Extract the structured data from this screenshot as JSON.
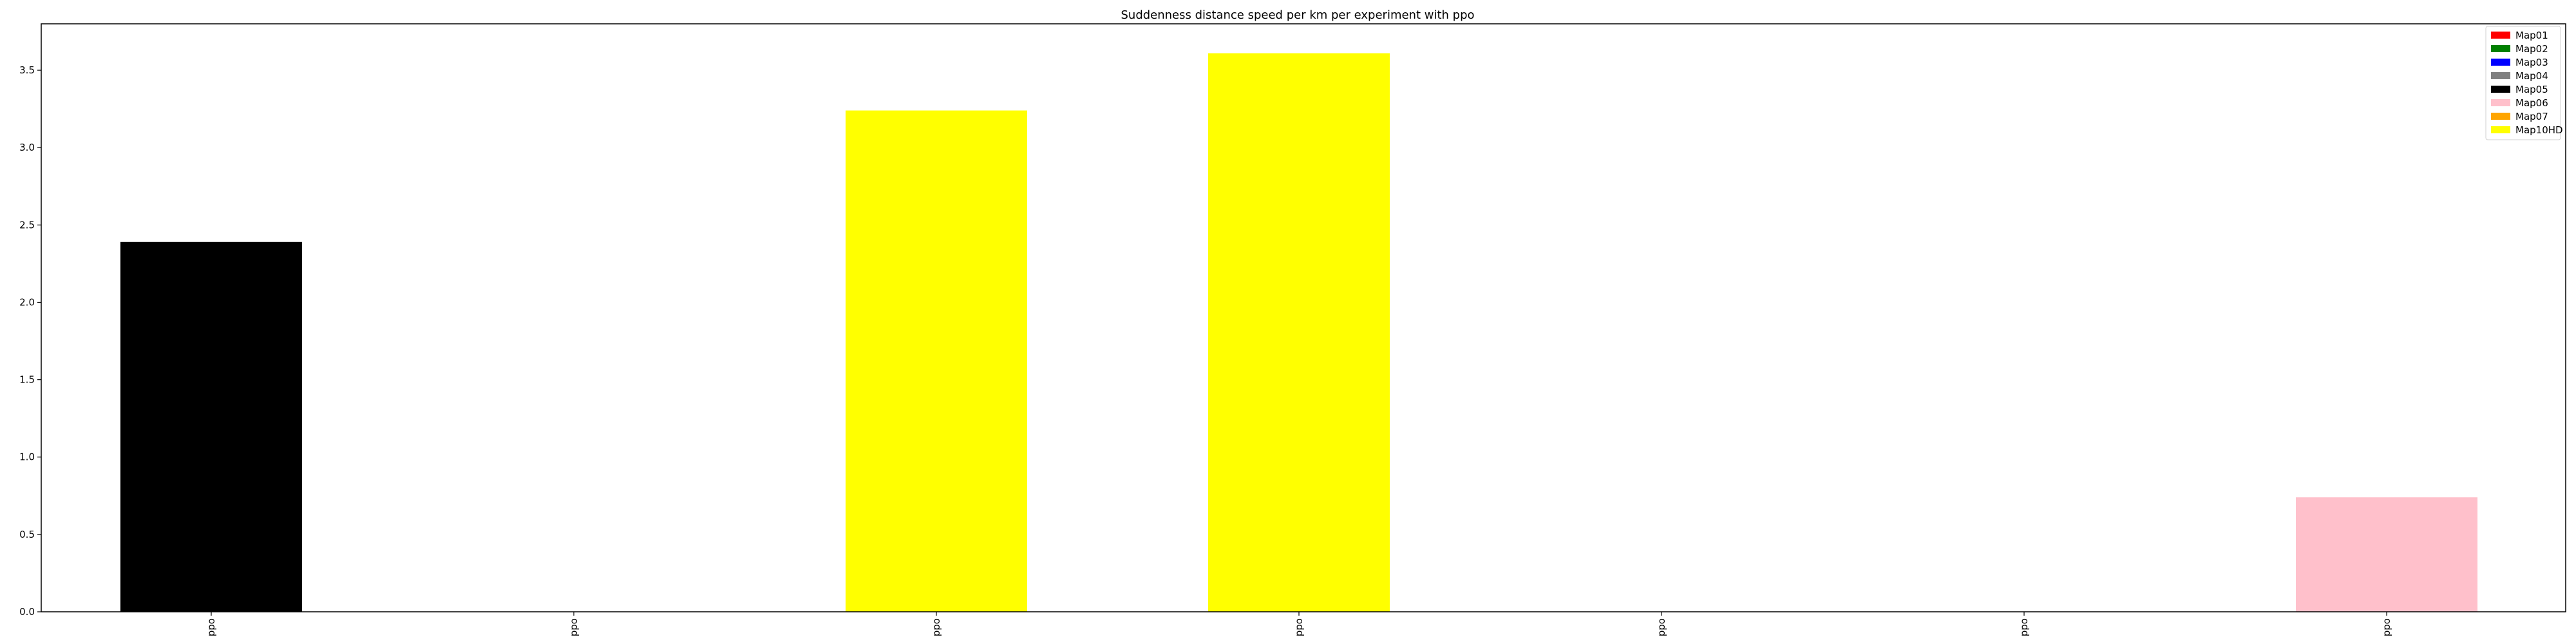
{
  "chart_data": {
    "type": "bar",
    "title": "Suddenness distance speed per km per experiment with ppo",
    "xlabel": "",
    "ylabel": "",
    "categories": [
      "ppo",
      "ppo",
      "ppo",
      "ppo",
      "ppo",
      "ppo",
      "ppo"
    ],
    "values": [
      2.39,
      0,
      3.24,
      3.61,
      0,
      0,
      0.74
    ],
    "bar_colors": [
      "#000000",
      "#000000",
      "#ffff00",
      "#ffff00",
      "#000000",
      "#000000",
      "#ffc0cb"
    ],
    "ylim": [
      0,
      3.8
    ],
    "yticks": [
      0.0,
      0.5,
      1.0,
      1.5,
      2.0,
      2.5,
      3.0,
      3.5
    ],
    "ytick_labels": [
      "0.0",
      "0.5",
      "1.0",
      "1.5",
      "2.0",
      "2.5",
      "3.0",
      "3.5"
    ],
    "grid": false,
    "legend_position": "top-right",
    "legend": [
      {
        "label": "Map01",
        "color": "#ff0000"
      },
      {
        "label": "Map02",
        "color": "#008000"
      },
      {
        "label": "Map03",
        "color": "#0000ff"
      },
      {
        "label": "Map04",
        "color": "#808080"
      },
      {
        "label": "Map05",
        "color": "#000000"
      },
      {
        "label": "Map06",
        "color": "#ffc0cb"
      },
      {
        "label": "Map07",
        "color": "#ffa500"
      },
      {
        "label": "Map10HD",
        "color": "#ffff00"
      }
    ]
  }
}
